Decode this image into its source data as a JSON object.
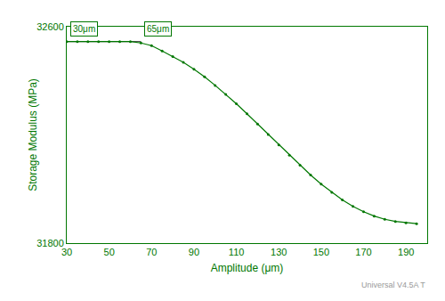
{
  "chart_data": {
    "type": "line",
    "x": [
      30,
      35,
      40,
      45,
      50,
      55,
      60,
      65,
      70,
      75,
      80,
      85,
      90,
      95,
      100,
      105,
      110,
      115,
      120,
      125,
      130,
      135,
      140,
      145,
      150,
      155,
      160,
      165,
      170,
      175,
      180,
      185,
      190,
      195
    ],
    "series": [
      {
        "color": "#555555",
        "line_style": "solid",
        "values": [
          32545,
          32545,
          32545,
          32545,
          32545,
          32545,
          32545,
          32545,
          null,
          null,
          null,
          null,
          null,
          null,
          null,
          null,
          null,
          null,
          null,
          null,
          null,
          null,
          null,
          null,
          null,
          null,
          null,
          null,
          null,
          null,
          null,
          null,
          null,
          null
        ]
      },
      {
        "color": "#007700",
        "line_style": "solid",
        "marker": "dot",
        "values": [
          32545,
          32545,
          32545,
          32545,
          32545,
          32545,
          32545,
          32540,
          32530,
          32510,
          32490,
          32468,
          32443,
          32415,
          32383,
          32350,
          32315,
          32278,
          32240,
          32202,
          32163,
          32125,
          32088,
          32052,
          32018,
          31988,
          31960,
          31936,
          31916,
          31900,
          31888,
          31880,
          31875,
          31872
        ]
      }
    ],
    "x_label": "Amplitude (μm)",
    "y_label": "Storage Modulus (MPa)",
    "xlim": [
      30,
      200
    ],
    "ylim": [
      31800,
      32600
    ],
    "xticks": [
      30,
      50,
      70,
      90,
      110,
      130,
      150,
      170,
      190
    ],
    "yticks": [
      31800,
      32600
    ],
    "grid": false,
    "color": "#007700",
    "annotations": [
      {
        "text": "30μm",
        "x": 30,
        "y": 32545
      },
      {
        "text": "65μm",
        "x": 65,
        "y": 32545
      },
      {
        "text": "Universal V4.5A T"
      }
    ]
  }
}
